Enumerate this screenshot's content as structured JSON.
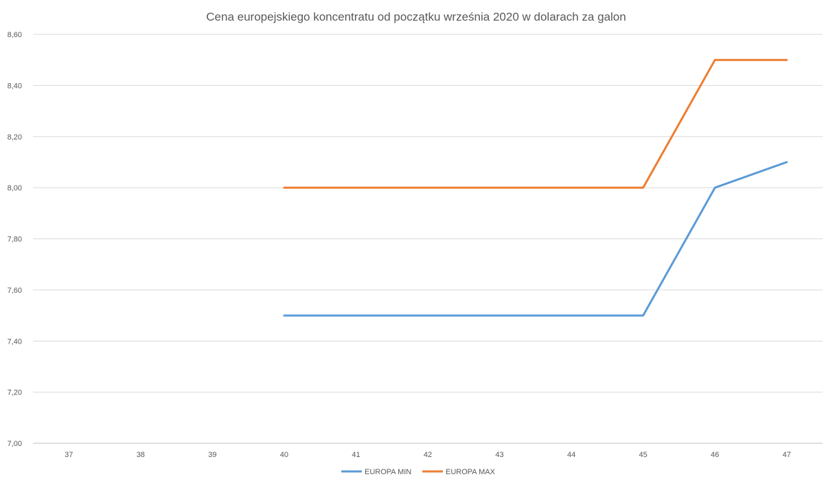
{
  "chart_data": {
    "type": "line",
    "title": "Cena europejskiego koncentratu od początku września 2020 w dolarach za galon",
    "xlabel": "",
    "ylabel": "",
    "categories": [
      "37",
      "38",
      "39",
      "40",
      "41",
      "42",
      "43",
      "44",
      "45",
      "46",
      "47"
    ],
    "ylim": [
      7.0,
      8.6
    ],
    "yticks": [
      "7,00",
      "7,20",
      "7,40",
      "7,60",
      "7,80",
      "8,00",
      "8,20",
      "8,40",
      "8,60"
    ],
    "grid": true,
    "legend_position": "bottom",
    "series": [
      {
        "name": "EUROPA MIN",
        "color": "#5b9bd5",
        "values": [
          null,
          null,
          null,
          7.5,
          7.5,
          7.5,
          7.5,
          7.5,
          7.5,
          8.0,
          8.1
        ]
      },
      {
        "name": "EUROPA MAX",
        "color": "#ed7d31",
        "values": [
          null,
          null,
          null,
          8.0,
          8.0,
          8.0,
          8.0,
          8.0,
          8.0,
          8.5,
          8.5
        ]
      }
    ]
  }
}
